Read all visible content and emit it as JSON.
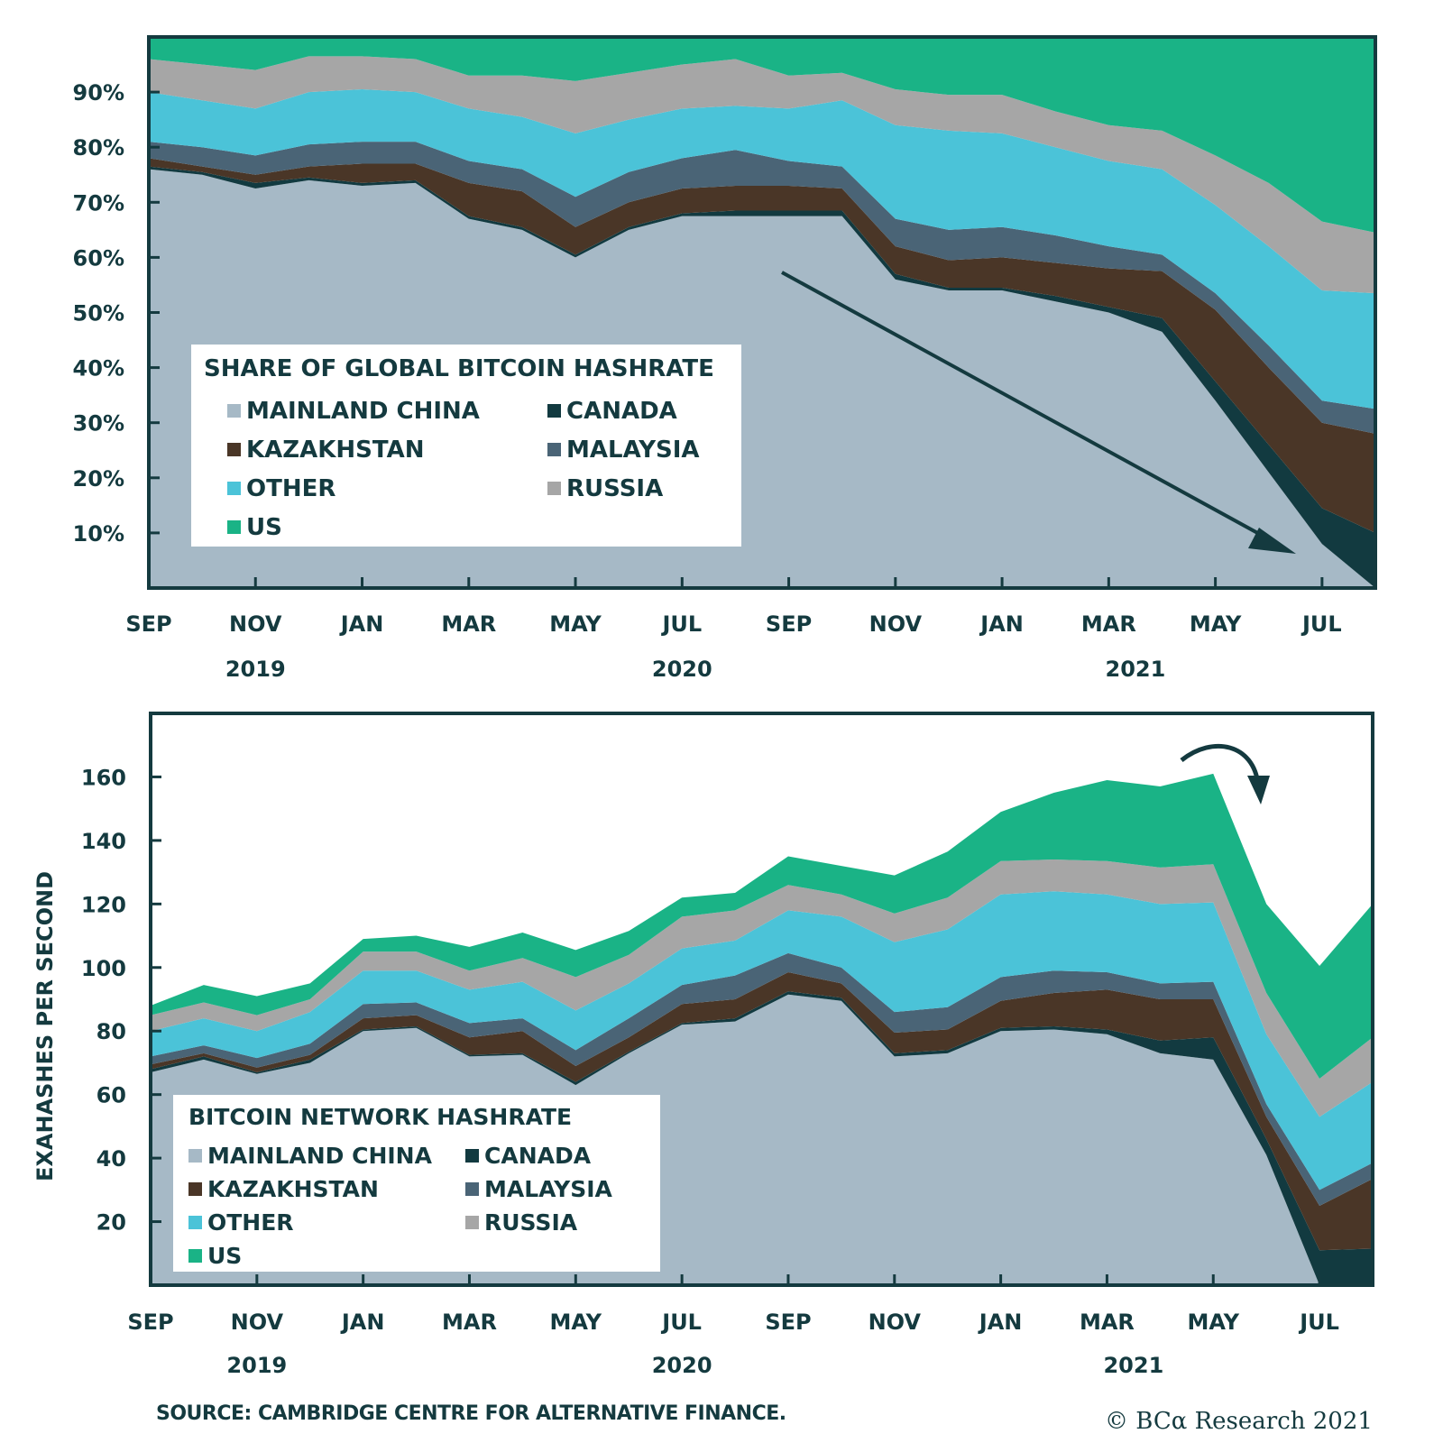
{
  "colors": {
    "MAINLAND CHINA": "#a6b9c6",
    "CANADA": "#123a40",
    "KAZAKHSTAN": "#4a3627",
    "MALAYSIA": "#4a6476",
    "OTHER": "#4bc3d8",
    "RUSSIA": "#a6a6a6",
    "US": "#1ab386",
    "axis": "#143a3f",
    "arrow": "#143a3f"
  },
  "chart_data": [
    {
      "type": "area",
      "stacked": true,
      "title": "SHARE OF GLOBAL BITCOIN HASHRATE",
      "xlabel": "",
      "ylabel": "",
      "ylim": [
        0,
        100
      ],
      "yticks": [
        10,
        20,
        30,
        40,
        50,
        60,
        70,
        80,
        90
      ],
      "ytick_labels": [
        "10%",
        "20%",
        "30%",
        "40%",
        "50%",
        "60%",
        "70%",
        "80%",
        "90%"
      ],
      "x": [
        "Sep 2019",
        "Oct 2019",
        "Nov 2019",
        "Dec 2019",
        "Jan 2020",
        "Feb 2020",
        "Mar 2020",
        "Apr 2020",
        "May 2020",
        "Jun 2020",
        "Jul 2020",
        "Aug 2020",
        "Sep 2020",
        "Oct 2020",
        "Nov 2020",
        "Dec 2020",
        "Jan 2021",
        "Feb 2021",
        "Mar 2021",
        "Apr 2021",
        "May 2021",
        "Jun 2021",
        "Jul 2021",
        "Aug 2021"
      ],
      "xtick_labels": [
        "SEP",
        "NOV",
        "JAN",
        "MAR",
        "MAY",
        "JUL",
        "SEP",
        "NOV",
        "JAN",
        "MAR",
        "MAY",
        "JUL"
      ],
      "year_labels": [
        "2019",
        "2020",
        "2021"
      ],
      "legend": [
        "MAINLAND CHINA",
        "CANADA",
        "KAZAKHSTAN",
        "MALAYSIA",
        "OTHER",
        "RUSSIA",
        "US"
      ],
      "legend_position": "lower-left",
      "annotation": "downward trend arrow",
      "series": [
        {
          "name": "MAINLAND CHINA",
          "values": [
            76,
            75,
            72.5,
            74,
            73,
            73.5,
            67,
            65,
            60,
            65,
            67.5,
            67.5,
            67.5,
            67.5,
            56,
            54,
            54,
            52,
            50,
            46.5,
            34,
            21,
            8,
            0
          ]
        },
        {
          "name": "CANADA",
          "values": [
            0.5,
            0.5,
            1,
            0.5,
            0.5,
            0.5,
            0.5,
            0.5,
            0.5,
            0.5,
            0.5,
            1,
            1,
            1,
            1,
            0.5,
            0.5,
            1,
            1,
            2.5,
            3.5,
            5,
            6.5,
            10
          ]
        },
        {
          "name": "KAZAKHSTAN",
          "values": [
            1.5,
            1,
            1.5,
            2,
            3.5,
            3,
            6,
            6.5,
            5,
            4.5,
            4.5,
            4.5,
            4.5,
            4,
            5,
            5,
            5.5,
            6,
            7,
            8.5,
            13,
            14,
            15.5,
            18
          ]
        },
        {
          "name": "MALAYSIA",
          "values": [
            3,
            3.5,
            3.5,
            4,
            4,
            4,
            4,
            4,
            5.5,
            5.5,
            5.5,
            6.5,
            4.5,
            4,
            5,
            5.5,
            5.5,
            5,
            4,
            3,
            3,
            4,
            4,
            4.5
          ]
        },
        {
          "name": "OTHER",
          "values": [
            9,
            8.5,
            8.5,
            9.5,
            9.5,
            9,
            9.5,
            9.5,
            11.5,
            9.5,
            9,
            8,
            9.5,
            12,
            17,
            18,
            17,
            16,
            15.5,
            15.5,
            16,
            18,
            20,
            21
          ]
        },
        {
          "name": "RUSSIA",
          "values": [
            6,
            6.5,
            7,
            6.5,
            6,
            6,
            6,
            7.5,
            9.5,
            8.5,
            8,
            8.5,
            6,
            5,
            6.5,
            6.5,
            7,
            6.5,
            6.5,
            7,
            9,
            11.5,
            12.5,
            11
          ]
        },
        {
          "name": "US",
          "values": [
            4,
            5,
            6,
            3.5,
            3.5,
            4,
            7,
            7,
            8,
            6.5,
            5,
            4,
            7,
            6.5,
            9.5,
            10.5,
            10.5,
            13.5,
            16,
            17,
            21.5,
            26.5,
            33.5,
            35.5
          ]
        }
      ]
    },
    {
      "type": "area",
      "stacked": true,
      "title": "BITCOIN NETWORK HASHRATE",
      "xlabel": "",
      "ylabel": "EXAHASHES PER SECOND",
      "ylim": [
        0,
        180
      ],
      "yticks": [
        20,
        40,
        60,
        80,
        100,
        120,
        140,
        160
      ],
      "ytick_labels": [
        "20",
        "40",
        "60",
        "80",
        "100",
        "120",
        "140",
        "160"
      ],
      "x": [
        "Sep 2019",
        "Oct 2019",
        "Nov 2019",
        "Dec 2019",
        "Jan 2020",
        "Feb 2020",
        "Mar 2020",
        "Apr 2020",
        "May 2020",
        "Jun 2020",
        "Jul 2020",
        "Aug 2020",
        "Sep 2020",
        "Oct 2020",
        "Nov 2020",
        "Dec 2020",
        "Jan 2021",
        "Feb 2021",
        "Mar 2021",
        "Apr 2021",
        "May 2021",
        "Jun 2021",
        "Jul 2021",
        "Aug 2021"
      ],
      "xtick_labels": [
        "SEP",
        "NOV",
        "JAN",
        "MAR",
        "MAY",
        "JUL",
        "SEP",
        "NOV",
        "JAN",
        "MAR",
        "MAY",
        "JUL"
      ],
      "year_labels": [
        "2019",
        "2020",
        "2021"
      ],
      "legend": [
        "MAINLAND CHINA",
        "CANADA",
        "KAZAKHSTAN",
        "MALAYSIA",
        "OTHER",
        "RUSSIA",
        "US"
      ],
      "legend_position": "lower-left",
      "annotation": "curved downward arrow at May 2021 peak",
      "series": [
        {
          "name": "MAINLAND CHINA",
          "values": [
            67,
            71,
            66.5,
            70,
            80,
            81,
            72,
            72.5,
            63,
            73,
            82,
            83,
            91.5,
            89.5,
            72,
            73,
            80,
            80.5,
            79,
            73,
            71,
            41,
            0,
            0
          ]
        },
        {
          "name": "CANADA",
          "values": [
            1,
            1,
            0.5,
            1,
            0.5,
            0.5,
            0.5,
            0.5,
            1,
            0.5,
            0.5,
            1,
            1,
            1,
            1,
            1,
            1,
            1,
            1.5,
            4,
            7,
            5,
            11,
            11.5
          ]
        },
        {
          "name": "KAZAKHSTAN",
          "values": [
            1.5,
            1,
            1.5,
            1.5,
            3.5,
            3.5,
            5.5,
            7,
            5,
            4.5,
            6,
            6,
            6,
            4.5,
            6.5,
            6.5,
            8.5,
            10.5,
            12.5,
            13,
            12,
            7,
            14,
            22
          ]
        },
        {
          "name": "MALAYSIA",
          "values": [
            2.5,
            2.5,
            3,
            3.5,
            4.5,
            4,
            4.5,
            4,
            5,
            6,
            6,
            7.5,
            6,
            5,
            6.5,
            7,
            7.5,
            7,
            5.5,
            5,
            5.5,
            4,
            5,
            5
          ]
        },
        {
          "name": "OTHER",
          "values": [
            8,
            8.5,
            8.5,
            10,
            10.5,
            10,
            10.5,
            11.5,
            12.5,
            11,
            11.5,
            11,
            13.5,
            16,
            22,
            24.5,
            26,
            25,
            24.5,
            25,
            25,
            22,
            23,
            25.5
          ]
        },
        {
          "name": "RUSSIA",
          "values": [
            5,
            5,
            5,
            4,
            6,
            6,
            6,
            7.5,
            10.5,
            9,
            10,
            9.5,
            8,
            7,
            9,
            10,
            10.5,
            10,
            10.5,
            11.5,
            12,
            13,
            12,
            14
          ]
        },
        {
          "name": "US",
          "values": [
            3,
            5.5,
            6,
            5,
            4,
            5,
            7.5,
            8,
            8.5,
            7.5,
            6,
            5.5,
            9,
            9,
            12,
            14.5,
            15.5,
            21,
            25.5,
            25.5,
            28.5,
            28,
            35.5,
            42
          ]
        }
      ]
    }
  ],
  "footer": {
    "source": "SOURCE: CAMBRIDGE CENTRE FOR ALTERNATIVE FINANCE.",
    "credit": "© BCα Research 2021"
  }
}
